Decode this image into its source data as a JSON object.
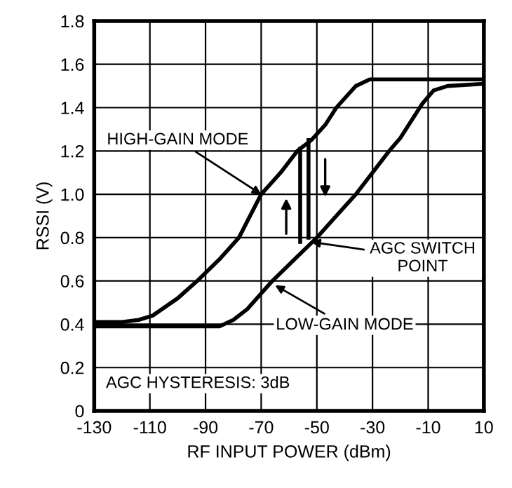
{
  "chart_data": {
    "type": "line",
    "xlabel": "RF INPUT POWER (dBm)",
    "ylabel": "RSSI (V)",
    "xlim": [
      -130,
      10
    ],
    "xticks": [
      -130,
      -110,
      -90,
      -70,
      -50,
      -30,
      -10,
      10
    ],
    "ylim": [
      0,
      1.8
    ],
    "yticks": [
      {
        "value": 0,
        "label": "0"
      },
      0.2,
      0.4,
      0.6,
      0.8,
      {
        "value": 1.0,
        "label": "1.0"
      },
      1.2,
      1.4,
      1.6,
      1.8
    ],
    "grid": true,
    "legend": false,
    "marker": "none",
    "line_style": "solid",
    "series": [
      {
        "color": "#000000",
        "x": [
          -130,
          -120,
          -114,
          -109,
          -100,
          -93,
          -85,
          -78,
          -70,
          -63,
          -57,
          -52,
          -47,
          -43,
          -36,
          -31,
          -25,
          10
        ],
        "values": [
          0.41,
          0.41,
          0.42,
          0.44,
          0.52,
          0.6,
          0.7,
          0.8,
          1.0,
          1.1,
          1.2,
          1.25,
          1.32,
          1.4,
          1.5,
          1.53,
          1.53,
          1.53
        ]
      },
      {
        "color": "#000000",
        "x": [
          -130,
          -85,
          -80,
          -75,
          -66,
          -58,
          -50,
          -43,
          -36,
          -30,
          -24,
          -20,
          -15,
          -12,
          -8,
          -3,
          10
        ],
        "values": [
          0.39,
          0.39,
          0.42,
          0.47,
          0.6,
          0.7,
          0.8,
          0.9,
          1.0,
          1.1,
          1.2,
          1.26,
          1.36,
          1.42,
          1.48,
          1.5,
          1.51
        ]
      },
      {
        "color": "#000000",
        "x": [
          -56,
          -56
        ],
        "values": [
          0.78,
          1.21
        ]
      },
      {
        "color": "#000000",
        "x": [
          -53,
          -53
        ],
        "values": [
          1.25,
          0.8
        ]
      }
    ],
    "annotations": [
      {
        "text": "HIGH-GAIN MODE",
        "x": -70,
        "y": 1.0
      },
      {
        "text": "AGC SWITCH\nPOINT",
        "x": -52,
        "y": 0.78
      },
      {
        "text": "LOW-GAIN MODE",
        "x": -65,
        "y": 0.58
      },
      "AGC HYSTERESIS: 3dB"
    ]
  }
}
